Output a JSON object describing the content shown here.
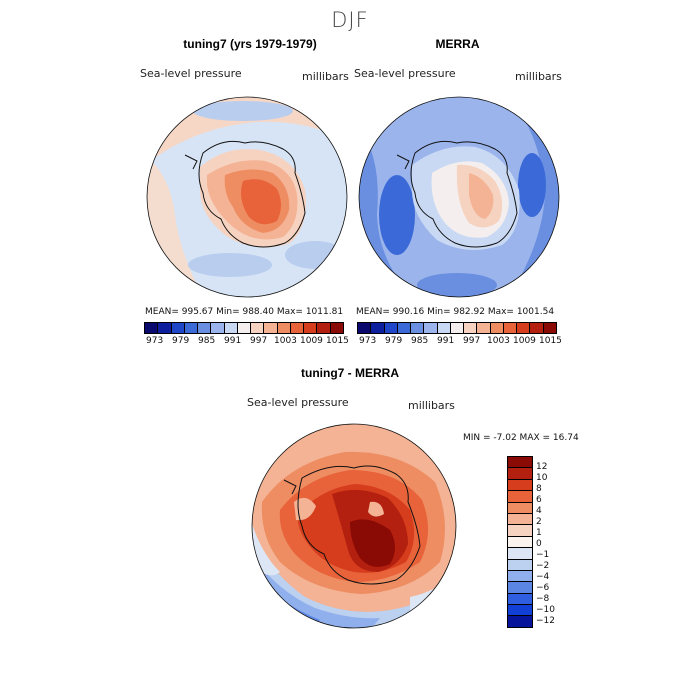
{
  "figure": {
    "season": "DJF",
    "panels": [
      {
        "title": "tuning7 (yrs 1979-1979)",
        "variable": "Sea-level pressure",
        "units": "millibars",
        "stats_text": "MEAN= 995.67    Min= 988.40    Max= 1011.81"
      },
      {
        "title": "MERRA",
        "variable": "Sea-level pressure",
        "units": "millibars",
        "stats_text": "MEAN= 990.16    Min= 982.92    Max= 1001.54"
      },
      {
        "title": "tuning7 - MERRA",
        "variable": "Sea-level pressure",
        "units": "millibars",
        "stats_text": "MIN =   -7.02  MAX =   16.74"
      }
    ],
    "abs_colorbar": {
      "ticks": [
        "973",
        "979",
        "985",
        "991",
        "997",
        "1003",
        "1009",
        "1015"
      ],
      "colors": [
        "#0a0a6e",
        "#0d1f9e",
        "#1f45c8",
        "#3b6ad8",
        "#6a8fe0",
        "#9bb5ec",
        "#c9d9f4",
        "#f4efee",
        "#f6d3c1",
        "#f3b394",
        "#ee8c62",
        "#e8623a",
        "#d63d1c",
        "#b3200f",
        "#8a0a05"
      ]
    },
    "diff_colorbar": {
      "labels": [
        "12",
        "10",
        "8",
        "6",
        "4",
        "2",
        "1",
        "0",
        "−1",
        "−2",
        "−4",
        "−6",
        "−8",
        "−10",
        "−12"
      ],
      "colors": [
        "#8a0a05",
        "#b3200f",
        "#d63d1c",
        "#e8623a",
        "#ee8c62",
        "#f3b394",
        "#f6d3c1",
        "#faf3ee",
        "#dce6f5",
        "#bcd0f0",
        "#8fb0ec",
        "#5c86e4",
        "#2f5fe0",
        "#123fd6",
        "#05149a"
      ]
    }
  }
}
